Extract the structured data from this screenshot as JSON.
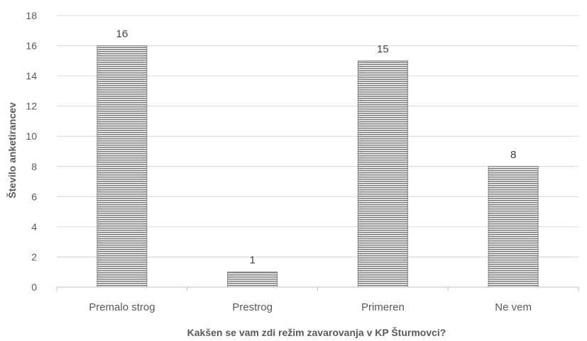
{
  "chart_data": {
    "type": "bar",
    "categories": [
      "Premalo strog",
      "Prestrog",
      "Primeren",
      "Ne vem"
    ],
    "values": [
      16,
      1,
      15,
      8
    ],
    "data_labels": [
      "16",
      "1",
      "15",
      "8"
    ],
    "xlabel": "Kakšen se vam zdi režim zavarovanja v KP Šturmovci?",
    "ylabel": "Število anketirancev",
    "ylim": [
      0,
      18
    ],
    "yticks": [
      0,
      2,
      4,
      6,
      8,
      10,
      12,
      14,
      16,
      18
    ],
    "ytick_labels": [
      "0",
      "2",
      "4",
      "6",
      "8",
      "10",
      "12",
      "14",
      "16",
      "18"
    ],
    "grid": true,
    "bar_fill": "horizontal-stripes",
    "colors": {
      "bar_stripe_dark": "#7f7f7f",
      "bar_stripe_light": "#ffffff",
      "grid": "#d9d9d9",
      "text": "#595959"
    }
  }
}
